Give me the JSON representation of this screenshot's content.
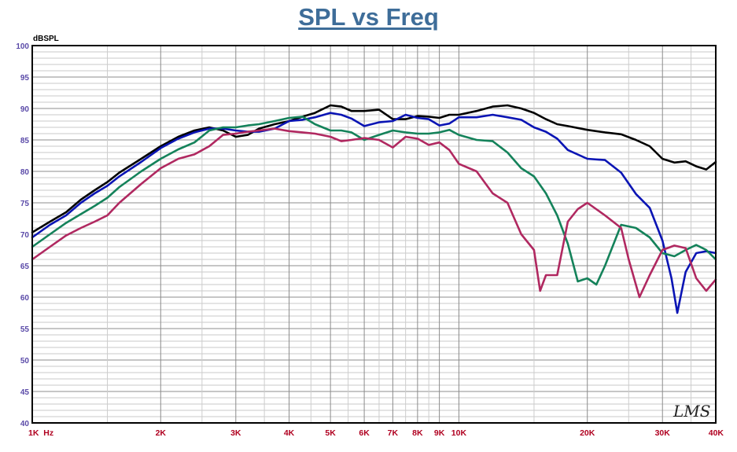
{
  "title": "SPL vs Freq",
  "chart_data": {
    "type": "line",
    "title": "SPL vs Freq",
    "ylabel": "dBSPL",
    "xlabel": "",
    "xscale": "log",
    "xlim": [
      1000,
      40000
    ],
    "ylim": [
      40,
      100
    ],
    "grid": true,
    "legend": "none",
    "watermark": "LMS",
    "x_ticks": [
      {
        "value": 1000,
        "label": "1K  Hz"
      },
      {
        "value": 2000,
        "label": "2K"
      },
      {
        "value": 3000,
        "label": "3K"
      },
      {
        "value": 4000,
        "label": "4K"
      },
      {
        "value": 5000,
        "label": "5K"
      },
      {
        "value": 6000,
        "label": "6K"
      },
      {
        "value": 7000,
        "label": "7K"
      },
      {
        "value": 8000,
        "label": "8K"
      },
      {
        "value": 9000,
        "label": "9K"
      },
      {
        "value": 10000,
        "label": "10K"
      },
      {
        "value": 20000,
        "label": "20K"
      },
      {
        "value": 30000,
        "label": "30K"
      },
      {
        "value": 40000,
        "label": "40K"
      }
    ],
    "y_ticks": [
      "40",
      "45",
      "50",
      "55",
      "60",
      "65",
      "70",
      "75",
      "80",
      "85",
      "90",
      "95",
      "100"
    ],
    "series": [
      {
        "color": "#000000",
        "points": [
          [
            1000,
            70.3
          ],
          [
            1100,
            72.0
          ],
          [
            1200,
            73.5
          ],
          [
            1300,
            75.5
          ],
          [
            1400,
            77.0
          ],
          [
            1500,
            78.3
          ],
          [
            1600,
            79.8
          ],
          [
            1800,
            82.0
          ],
          [
            2000,
            84.0
          ],
          [
            2200,
            85.5
          ],
          [
            2400,
            86.5
          ],
          [
            2600,
            87.0
          ],
          [
            2800,
            86.5
          ],
          [
            3000,
            85.5
          ],
          [
            3200,
            85.8
          ],
          [
            3400,
            86.8
          ],
          [
            3700,
            87.5
          ],
          [
            4000,
            88.0
          ],
          [
            4300,
            88.7
          ],
          [
            4600,
            89.3
          ],
          [
            5000,
            90.5
          ],
          [
            5300,
            90.3
          ],
          [
            5600,
            89.6
          ],
          [
            6000,
            89.6
          ],
          [
            6500,
            89.8
          ],
          [
            7000,
            88.3
          ],
          [
            7500,
            88.3
          ],
          [
            8000,
            88.8
          ],
          [
            8500,
            88.7
          ],
          [
            9000,
            88.5
          ],
          [
            9500,
            89.0
          ],
          [
            10000,
            89.0
          ],
          [
            11000,
            89.6
          ],
          [
            12000,
            90.3
          ],
          [
            13000,
            90.5
          ],
          [
            14000,
            90.0
          ],
          [
            15000,
            89.3
          ],
          [
            16000,
            88.3
          ],
          [
            17000,
            87.5
          ],
          [
            18000,
            87.2
          ],
          [
            20000,
            86.6
          ],
          [
            22000,
            86.2
          ],
          [
            24000,
            85.9
          ],
          [
            26000,
            85.0
          ],
          [
            28000,
            84.0
          ],
          [
            30000,
            82.0
          ],
          [
            32000,
            81.4
          ],
          [
            34000,
            81.6
          ],
          [
            36000,
            80.8
          ],
          [
            38000,
            80.3
          ],
          [
            40000,
            81.5
          ]
        ]
      },
      {
        "color": "#0a14b4",
        "points": [
          [
            1000,
            69.5
          ],
          [
            1100,
            71.5
          ],
          [
            1200,
            73.0
          ],
          [
            1300,
            75.0
          ],
          [
            1400,
            76.5
          ],
          [
            1500,
            77.7
          ],
          [
            1600,
            79.2
          ],
          [
            1800,
            81.5
          ],
          [
            2000,
            83.7
          ],
          [
            2200,
            85.2
          ],
          [
            2400,
            86.2
          ],
          [
            2600,
            86.8
          ],
          [
            2800,
            86.8
          ],
          [
            3000,
            86.5
          ],
          [
            3200,
            86.3
          ],
          [
            3400,
            86.3
          ],
          [
            3700,
            86.8
          ],
          [
            4000,
            88.0
          ],
          [
            4300,
            88.2
          ],
          [
            4600,
            88.6
          ],
          [
            5000,
            89.3
          ],
          [
            5300,
            89.0
          ],
          [
            5600,
            88.4
          ],
          [
            6000,
            87.2
          ],
          [
            6500,
            87.8
          ],
          [
            7000,
            88.0
          ],
          [
            7500,
            89.0
          ],
          [
            8000,
            88.5
          ],
          [
            8500,
            88.3
          ],
          [
            9000,
            87.3
          ],
          [
            9500,
            87.6
          ],
          [
            10000,
            88.6
          ],
          [
            11000,
            88.6
          ],
          [
            12000,
            89.0
          ],
          [
            13000,
            88.6
          ],
          [
            14000,
            88.2
          ],
          [
            15000,
            87.0
          ],
          [
            16000,
            86.3
          ],
          [
            17000,
            85.2
          ],
          [
            18000,
            83.4
          ],
          [
            20000,
            82.0
          ],
          [
            22000,
            81.8
          ],
          [
            24000,
            79.8
          ],
          [
            26000,
            76.4
          ],
          [
            28000,
            74.2
          ],
          [
            30000,
            69.0
          ],
          [
            31500,
            63.0
          ],
          [
            32500,
            57.5
          ],
          [
            34000,
            64.0
          ],
          [
            36000,
            67.0
          ],
          [
            38000,
            67.3
          ],
          [
            40000,
            67.0
          ]
        ]
      },
      {
        "color": "#14825a",
        "points": [
          [
            1000,
            68.0
          ],
          [
            1100,
            70.0
          ],
          [
            1200,
            71.8
          ],
          [
            1300,
            73.2
          ],
          [
            1400,
            74.5
          ],
          [
            1500,
            75.8
          ],
          [
            1600,
            77.5
          ],
          [
            1800,
            80.0
          ],
          [
            2000,
            82.0
          ],
          [
            2200,
            83.5
          ],
          [
            2400,
            84.6
          ],
          [
            2600,
            86.5
          ],
          [
            2800,
            87.0
          ],
          [
            3000,
            87.0
          ],
          [
            3200,
            87.3
          ],
          [
            3400,
            87.5
          ],
          [
            3700,
            88.0
          ],
          [
            4000,
            88.5
          ],
          [
            4300,
            88.7
          ],
          [
            4600,
            87.5
          ],
          [
            5000,
            86.5
          ],
          [
            5300,
            86.5
          ],
          [
            5600,
            86.2
          ],
          [
            6000,
            85.0
          ],
          [
            6500,
            85.8
          ],
          [
            7000,
            86.5
          ],
          [
            7500,
            86.2
          ],
          [
            8000,
            86.0
          ],
          [
            8500,
            86.0
          ],
          [
            9000,
            86.2
          ],
          [
            9500,
            86.6
          ],
          [
            10000,
            85.8
          ],
          [
            11000,
            85.0
          ],
          [
            12000,
            84.8
          ],
          [
            13000,
            83.0
          ],
          [
            14000,
            80.5
          ],
          [
            15000,
            79.2
          ],
          [
            16000,
            76.5
          ],
          [
            17000,
            73.0
          ],
          [
            18000,
            68.5
          ],
          [
            19000,
            62.5
          ],
          [
            20000,
            63.0
          ],
          [
            21000,
            62.0
          ],
          [
            22000,
            65.0
          ],
          [
            24000,
            71.5
          ],
          [
            26000,
            71.0
          ],
          [
            28000,
            69.5
          ],
          [
            30000,
            67.0
          ],
          [
            32000,
            66.5
          ],
          [
            34000,
            67.5
          ],
          [
            36000,
            68.3
          ],
          [
            38000,
            67.5
          ],
          [
            40000,
            66.0
          ]
        ]
      },
      {
        "color": "#b02860",
        "points": [
          [
            1000,
            66.0
          ],
          [
            1100,
            68.0
          ],
          [
            1200,
            69.8
          ],
          [
            1300,
            71.0
          ],
          [
            1400,
            72.0
          ],
          [
            1500,
            73.0
          ],
          [
            1600,
            75.0
          ],
          [
            1800,
            78.0
          ],
          [
            2000,
            80.5
          ],
          [
            2200,
            82.0
          ],
          [
            2400,
            82.7
          ],
          [
            2600,
            84.0
          ],
          [
            2800,
            85.8
          ],
          [
            3000,
            86.0
          ],
          [
            3200,
            86.3
          ],
          [
            3400,
            86.5
          ],
          [
            3700,
            86.8
          ],
          [
            4000,
            86.4
          ],
          [
            4300,
            86.2
          ],
          [
            4600,
            86.0
          ],
          [
            5000,
            85.5
          ],
          [
            5300,
            84.8
          ],
          [
            5600,
            85.0
          ],
          [
            6000,
            85.3
          ],
          [
            6500,
            85.0
          ],
          [
            7000,
            83.8
          ],
          [
            7500,
            85.5
          ],
          [
            8000,
            85.2
          ],
          [
            8500,
            84.2
          ],
          [
            9000,
            84.6
          ],
          [
            9500,
            83.4
          ],
          [
            10000,
            81.2
          ],
          [
            11000,
            80.0
          ],
          [
            12000,
            76.5
          ],
          [
            13000,
            75.0
          ],
          [
            14000,
            70.0
          ],
          [
            15000,
            67.5
          ],
          [
            15500,
            61.0
          ],
          [
            16000,
            63.5
          ],
          [
            17000,
            63.5
          ],
          [
            18000,
            72.0
          ],
          [
            19000,
            74.0
          ],
          [
            20000,
            75.0
          ],
          [
            22000,
            73.0
          ],
          [
            24000,
            71.0
          ],
          [
            25000,
            66.0
          ],
          [
            26500,
            60.0
          ],
          [
            28000,
            63.5
          ],
          [
            30000,
            67.5
          ],
          [
            32000,
            68.2
          ],
          [
            34000,
            67.8
          ],
          [
            36000,
            63.0
          ],
          [
            38000,
            61.0
          ],
          [
            40000,
            62.8
          ]
        ]
      }
    ]
  }
}
